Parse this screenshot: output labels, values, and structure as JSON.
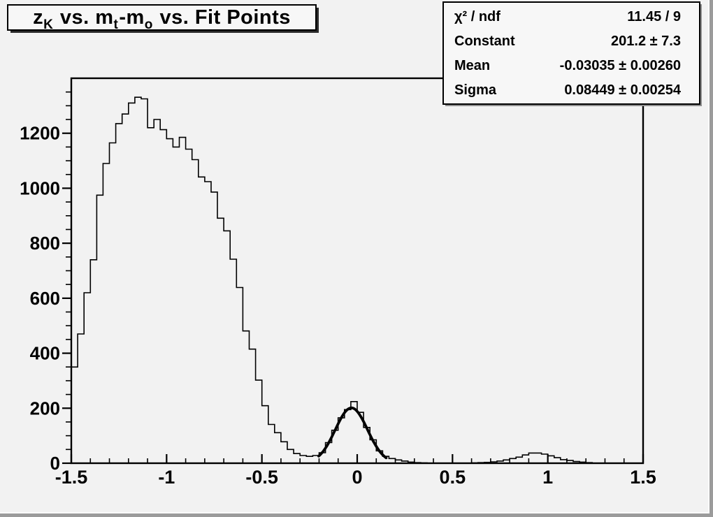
{
  "window": {
    "background": "#f2f2f2",
    "edge_shadow_color": "#9b9b9b"
  },
  "title_box": {
    "segments": [
      {
        "t": "z"
      },
      {
        "sub": "K"
      },
      {
        "t": " vs. m"
      },
      {
        "sub": "t"
      },
      {
        "t": "-m"
      },
      {
        "sub": "o"
      },
      {
        "t": " vs. Fit Points"
      }
    ]
  },
  "stats_box": {
    "rows": [
      {
        "label": "χ² / ndf",
        "value": "11.45 / 9"
      },
      {
        "label": "Constant",
        "value": "201.2 ± 7.3"
      },
      {
        "label": "Mean",
        "value": "-0.03035 ± 0.00260"
      },
      {
        "label": "Sigma",
        "value": "0.08449 ± 0.00254"
      }
    ]
  },
  "chart_data": {
    "type": "bar",
    "style": "step-histogram",
    "title": "z_K vs. m_t-m_o vs. Fit Points",
    "xlabel": "",
    "ylabel": "",
    "xlim": [
      -1.5,
      1.5
    ],
    "ylim": [
      0,
      1400
    ],
    "grid": false,
    "n_bins": 90,
    "bins_start": -1.5,
    "bin_width": 0.0333333,
    "values": [
      350,
      470,
      620,
      740,
      975,
      1090,
      1165,
      1235,
      1270,
      1310,
      1331,
      1325,
      1220,
      1250,
      1213,
      1180,
      1150,
      1185,
      1142,
      1104,
      1041,
      1024,
      986,
      891,
      845,
      742,
      639,
      481,
      415,
      302,
      209,
      141,
      111,
      78,
      50,
      35,
      28,
      25,
      28,
      38,
      75,
      120,
      165,
      195,
      224,
      185,
      130,
      85,
      45,
      25,
      17,
      12,
      8,
      4,
      2,
      1,
      0,
      0,
      0,
      0,
      0,
      0,
      0,
      1,
      2,
      3,
      5,
      8,
      12,
      17,
      22,
      30,
      37,
      37,
      33,
      27,
      20,
      13,
      10,
      6,
      4,
      2,
      0,
      0,
      0,
      0,
      0,
      0,
      0,
      0
    ],
    "x_major_ticks": [
      -1.5,
      -1,
      -0.5,
      0,
      0.5,
      1,
      1.5
    ],
    "x_tick_labels": [
      "-1.5",
      "-1",
      "-0.5",
      "0",
      "0.5",
      "1",
      "1.5"
    ],
    "x_minor_step": 0.1,
    "y_major_ticks": [
      0,
      200,
      400,
      600,
      800,
      1000,
      1200
    ],
    "y_tick_labels": [
      "0",
      "200",
      "400",
      "600",
      "800",
      "1000",
      "1200"
    ],
    "y_minor_step": 50,
    "line_color": "#000000",
    "axis_color": "#000000",
    "fit": {
      "type": "gaussian",
      "constant": 201.2,
      "mean": -0.03035,
      "sigma": 0.08449,
      "draw_range": [
        -0.202,
        0.152
      ],
      "color": "#000000"
    }
  }
}
